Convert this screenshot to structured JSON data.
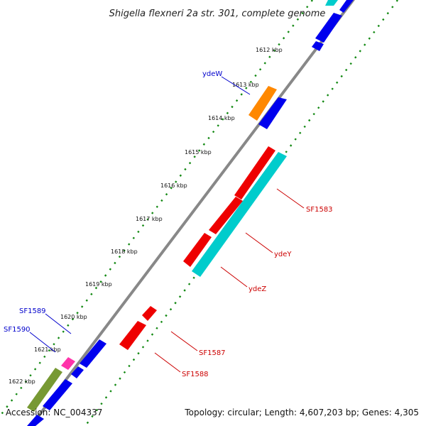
{
  "title": "Shigella flexneri 2a str. 301, complete genome",
  "footer": {
    "accession": "Accession: NC_004337",
    "summary": "Topology: circular; Length: 4,607,203 bp; Genes: 4,305"
  },
  "colors": {
    "forward_gene": "#0000ee",
    "reverse_gene": "#ee0000",
    "rna_gene": "#00cccc",
    "orange_gene": "#ff8800",
    "pink_gene": "#ff33aa",
    "olive_gene": "#779933",
    "backbone": "#888888",
    "dots": "#118811",
    "forward_label": "#0000cc",
    "reverse_label": "#cc0000"
  },
  "ticks": [
    {
      "label": "1612 kbp"
    },
    {
      "label": "1613 kbp"
    },
    {
      "label": "1614 kbp"
    },
    {
      "label": "1615 kbp"
    },
    {
      "label": "1616 kbp"
    },
    {
      "label": "1617 kbp"
    },
    {
      "label": "1618 kbp"
    },
    {
      "label": "1619 kbp"
    },
    {
      "label": "1620 kbp"
    },
    {
      "label": "1621 kbp"
    },
    {
      "label": "1622 kbp"
    }
  ],
  "gene_labels": [
    {
      "name": "ydeW",
      "strand": "forward"
    },
    {
      "name": "SF1583",
      "strand": "reverse"
    },
    {
      "name": "ydeY",
      "strand": "reverse"
    },
    {
      "name": "ydeZ",
      "strand": "reverse"
    },
    {
      "name": "SF1587",
      "strand": "reverse"
    },
    {
      "name": "SF1588",
      "strand": "reverse"
    },
    {
      "name": "SF1589",
      "strand": "forward"
    },
    {
      "name": "SF1590",
      "strand": "forward"
    }
  ]
}
